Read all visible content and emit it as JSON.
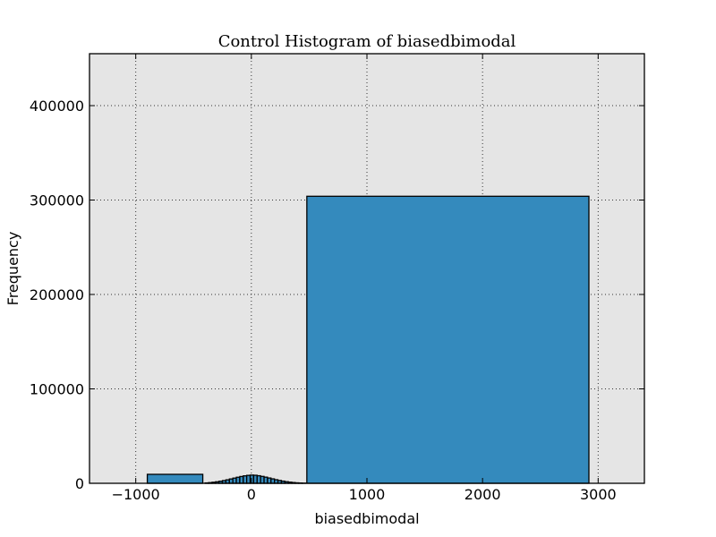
{
  "chart_data": {
    "type": "bar",
    "title": "Control Histogram of biasedbimodal",
    "xlabel": "biasedbimodal",
    "ylabel": "Frequency",
    "xlim": [
      -1400,
      3400
    ],
    "ylim": [
      0,
      455000
    ],
    "xticks": [
      -1000,
      0,
      1000,
      2000,
      3000
    ],
    "xtick_labels": [
      "−1000",
      "0",
      "1000",
      "2000",
      "3000"
    ],
    "yticks": [
      0,
      100000,
      200000,
      300000,
      400000
    ],
    "ytick_labels": [
      "0",
      "100000",
      "200000",
      "300000",
      "400000"
    ],
    "grid": true,
    "colors": {
      "bar": "#348abd",
      "background": "#e5e5e5",
      "edge": "#000000"
    },
    "bins": [
      {
        "left": -900,
        "right": -420,
        "count": 9500
      },
      {
        "left": -400,
        "right": -370,
        "count": 400
      },
      {
        "left": -370,
        "right": -340,
        "count": 700
      },
      {
        "left": -340,
        "right": -310,
        "count": 1100
      },
      {
        "left": -310,
        "right": -280,
        "count": 1600
      },
      {
        "left": -280,
        "right": -250,
        "count": 2200
      },
      {
        "left": -250,
        "right": -220,
        "count": 2900
      },
      {
        "left": -220,
        "right": -190,
        "count": 3700
      },
      {
        "left": -190,
        "right": -160,
        "count": 4600
      },
      {
        "left": -160,
        "right": -130,
        "count": 5500
      },
      {
        "left": -130,
        "right": -100,
        "count": 6400
      },
      {
        "left": -100,
        "right": -70,
        "count": 7200
      },
      {
        "left": -70,
        "right": -40,
        "count": 7900
      },
      {
        "left": -40,
        "right": -10,
        "count": 8400
      },
      {
        "left": -10,
        "right": 20,
        "count": 8700
      },
      {
        "left": 20,
        "right": 50,
        "count": 8500
      },
      {
        "left": 50,
        "right": 80,
        "count": 8000
      },
      {
        "left": 80,
        "right": 110,
        "count": 7300
      },
      {
        "left": 110,
        "right": 140,
        "count": 6500
      },
      {
        "left": 140,
        "right": 170,
        "count": 5600
      },
      {
        "left": 170,
        "right": 200,
        "count": 4700
      },
      {
        "left": 200,
        "right": 230,
        "count": 3800
      },
      {
        "left": 230,
        "right": 260,
        "count": 3000
      },
      {
        "left": 260,
        "right": 290,
        "count": 2300
      },
      {
        "left": 290,
        "right": 320,
        "count": 1700
      },
      {
        "left": 320,
        "right": 350,
        "count": 1200
      },
      {
        "left": 350,
        "right": 380,
        "count": 800
      },
      {
        "left": 380,
        "right": 410,
        "count": 500
      },
      {
        "left": 410,
        "right": 440,
        "count": 300
      },
      {
        "left": 440,
        "right": 470,
        "count": 150
      },
      {
        "left": 480,
        "right": 2920,
        "count": 304000
      }
    ]
  }
}
